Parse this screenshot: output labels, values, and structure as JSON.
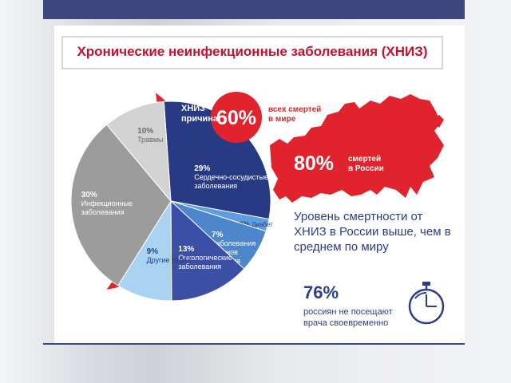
{
  "title": "Хронические неинфекционные заболевания (ХНИЗ)",
  "colors": {
    "brand_red": "#e0232c",
    "navy": "#3e4780",
    "text_blue": "#2c3f86"
  },
  "chart_data": {
    "type": "pie",
    "slices": [
      {
        "percent_label": "29%",
        "label": "Сердечно-сосудистые заболевания",
        "value": 29,
        "color": "#283a84"
      },
      {
        "percent_label": "2%",
        "label": "Диабет",
        "value": 2,
        "color": "#5f9de0"
      },
      {
        "percent_label": "7%",
        "label": "Заболевания органов дыхания",
        "value": 7,
        "color": "#4e86cc"
      },
      {
        "percent_label": "13%",
        "label": "Онкологические заболевания",
        "value": 13,
        "color": "#3b4fa6"
      },
      {
        "percent_label": "9%",
        "label": "Другие ХНИЗ",
        "value": 9,
        "color": "#a9d3f1"
      },
      {
        "percent_label": "30%",
        "label": "Инфекционные заболевания",
        "value": 30,
        "color": "#9c9c9c"
      },
      {
        "percent_label": "10%",
        "label": "Травмы",
        "value": 10,
        "color": "#d3d3d3"
      }
    ],
    "ncd_label": "ХНИЗ – причина",
    "ncd_world_share": {
      "value": 60,
      "label": "60%",
      "caption": "всех смертей в мире"
    }
  },
  "russia": {
    "share": {
      "value": 80,
      "label": "80%",
      "caption": "смертей в России"
    },
    "statement": "Уровень смертности от ХНИЗ в России выше, чем в среднем по миру"
  },
  "doctor_visits": {
    "value": 76,
    "label": "76%",
    "caption": "россиян не посещают врача своевременно",
    "icon": "stopwatch-icon"
  }
}
